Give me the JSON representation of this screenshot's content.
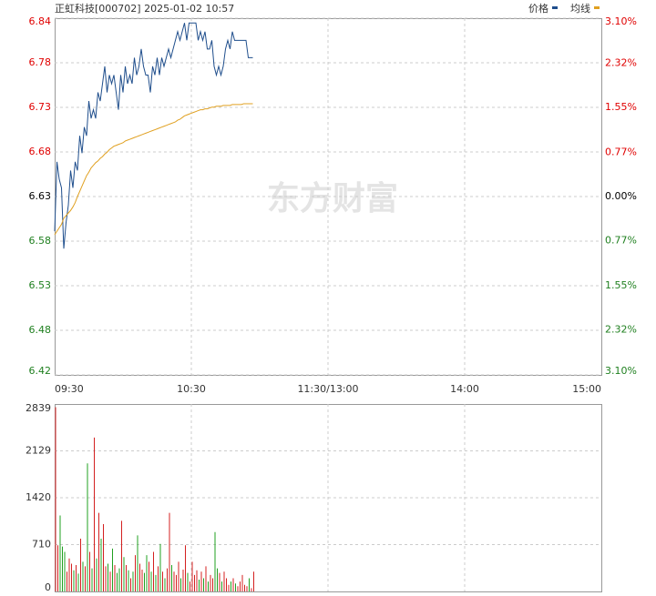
{
  "chart_data": [
    {
      "type": "line",
      "title": "正虹科技[000702] 2025-01-02 10:57",
      "watermark": "东方财富",
      "x": [
        0,
        1,
        2,
        3,
        4,
        5,
        6,
        7,
        8,
        9,
        10,
        11,
        12,
        13,
        14,
        15,
        16,
        17,
        18,
        19,
        20,
        21,
        22,
        23,
        24,
        25,
        26,
        27,
        28,
        29,
        30,
        31,
        32,
        33,
        34,
        35,
        36,
        37,
        38,
        39,
        40,
        41,
        42,
        43,
        44,
        45,
        46,
        47,
        48,
        49,
        50,
        51,
        52,
        53,
        54,
        55,
        56,
        57,
        58,
        59,
        60,
        61,
        62,
        63,
        64,
        65,
        66,
        67,
        68,
        69,
        70,
        71,
        72,
        73,
        74,
        75,
        76,
        77,
        78,
        79,
        80,
        81,
        82,
        83,
        84,
        85,
        86,
        87
      ],
      "series": [
        {
          "name": "价格",
          "color": "#1f4e8c",
          "values": [
            6.59,
            6.67,
            6.65,
            6.64,
            6.57,
            6.6,
            6.62,
            6.66,
            6.64,
            6.67,
            6.66,
            6.7,
            6.68,
            6.71,
            6.7,
            6.74,
            6.72,
            6.73,
            6.72,
            6.75,
            6.74,
            6.76,
            6.78,
            6.75,
            6.77,
            6.76,
            6.77,
            6.75,
            6.73,
            6.77,
            6.75,
            6.78,
            6.76,
            6.77,
            6.76,
            6.79,
            6.77,
            6.78,
            6.8,
            6.78,
            6.77,
            6.77,
            6.75,
            6.78,
            6.77,
            6.79,
            6.77,
            6.79,
            6.78,
            6.79,
            6.8,
            6.79,
            6.8,
            6.81,
            6.82,
            6.81,
            6.82,
            6.83,
            6.81,
            6.83,
            6.83,
            6.83,
            6.83,
            6.81,
            6.82,
            6.81,
            6.82,
            6.8,
            6.8,
            6.81,
            6.78,
            6.77,
            6.78,
            6.77,
            6.78,
            6.8,
            6.81,
            6.8,
            6.82,
            6.81,
            6.81,
            6.81,
            6.81,
            6.81,
            6.81,
            6.79,
            6.79,
            6.79
          ]
        },
        {
          "name": "均线",
          "color": "#e0a020",
          "values": [
            6.586,
            6.59,
            6.594,
            6.598,
            6.605,
            6.608,
            6.611,
            6.614,
            6.618,
            6.623,
            6.63,
            6.636,
            6.642,
            6.648,
            6.654,
            6.658,
            6.663,
            6.666,
            6.669,
            6.671,
            6.674,
            6.676,
            6.679,
            6.681,
            6.684,
            6.686,
            6.688,
            6.689,
            6.69,
            6.691,
            6.692,
            6.694,
            6.695,
            6.696,
            6.697,
            6.698,
            6.699,
            6.7,
            6.701,
            6.702,
            6.703,
            6.704,
            6.705,
            6.706,
            6.707,
            6.708,
            6.709,
            6.71,
            6.711,
            6.712,
            6.713,
            6.714,
            6.715,
            6.716,
            6.718,
            6.719,
            6.721,
            6.723,
            6.724,
            6.725,
            6.726,
            6.727,
            6.728,
            6.729,
            6.73,
            6.73,
            6.731,
            6.731,
            6.732,
            6.733,
            6.733,
            6.734,
            6.734,
            6.734,
            6.735,
            6.735,
            6.735,
            6.735,
            6.736,
            6.736,
            6.736,
            6.736,
            6.736,
            6.737,
            6.737,
            6.737,
            6.737,
            6.737
          ]
        }
      ],
      "xlim": [
        0,
        240
      ],
      "xticks": [
        {
          "value": 0,
          "label": "09:30"
        },
        {
          "value": 60,
          "label": "10:30"
        },
        {
          "value": 120,
          "label": "11:30/13:00"
        },
        {
          "value": 180,
          "label": "14:00"
        },
        {
          "value": 240,
          "label": "15:00"
        }
      ],
      "ylim": [
        6.4245,
        6.8355
      ],
      "yticks": [
        {
          "value": 6.8355,
          "label": "6.84"
        },
        {
          "value": 6.7841,
          "label": "6.78"
        },
        {
          "value": 6.7328,
          "label": "6.73"
        },
        {
          "value": 6.6814,
          "label": "6.68"
        },
        6.63,
        {
          "value": 6.5786,
          "label": "6.58"
        },
        {
          "value": 6.5272,
          "label": "6.53"
        },
        {
          "value": 6.4759,
          "label": "6.48"
        },
        {
          "value": 6.4245,
          "label": "6.42"
        }
      ],
      "y2lim": [
        -3.1,
        3.1
      ],
      "y2ticks": [
        {
          "value": 3.1,
          "label": "3.10%"
        },
        {
          "value": 2.32,
          "label": "2.32%"
        },
        {
          "value": 1.55,
          "label": "1.55%"
        },
        {
          "value": 0.77,
          "label": "0.77%"
        },
        {
          "value": 0,
          "label": "0.00%"
        },
        {
          "value": -0.77,
          "label": "0.77%"
        },
        {
          "value": -1.55,
          "label": "1.55%"
        },
        {
          "value": -2.32,
          "label": "2.32%"
        },
        {
          "value": -3.1,
          "label": "3.10%"
        }
      ],
      "up_color": "#e00000",
      "down_color": "#208020",
      "flat_color": "#000000",
      "grid": true,
      "legend": "top-right"
    },
    {
      "type": "bar",
      "values": [
        2790,
        700,
        1150,
        680,
        600,
        300,
        500,
        420,
        320,
        400,
        270,
        800,
        450,
        380,
        1940,
        600,
        350,
        2330,
        500,
        1190,
        800,
        1020,
        380,
        420,
        300,
        650,
        400,
        280,
        350,
        1070,
        520,
        400,
        320,
        200,
        300,
        550,
        850,
        420,
        330,
        280,
        550,
        450,
        300,
        600,
        250,
        380,
        720,
        300,
        200,
        350,
        1190,
        400,
        300,
        250,
        450,
        200,
        330,
        700,
        280,
        150,
        450,
        250,
        320,
        180,
        300,
        200,
        380,
        150,
        250,
        200,
        900,
        350,
        280,
        150,
        300,
        200,
        100,
        150,
        200,
        120,
        80,
        150,
        250,
        100,
        80,
        200,
        50,
        300
      ],
      "ylim": [
        0,
        2839
      ],
      "yticks": [
        0,
        710,
        1420,
        2129,
        2839
      ],
      "up_color": "#d42020",
      "down_color": "#20a020",
      "grid": true
    }
  ]
}
